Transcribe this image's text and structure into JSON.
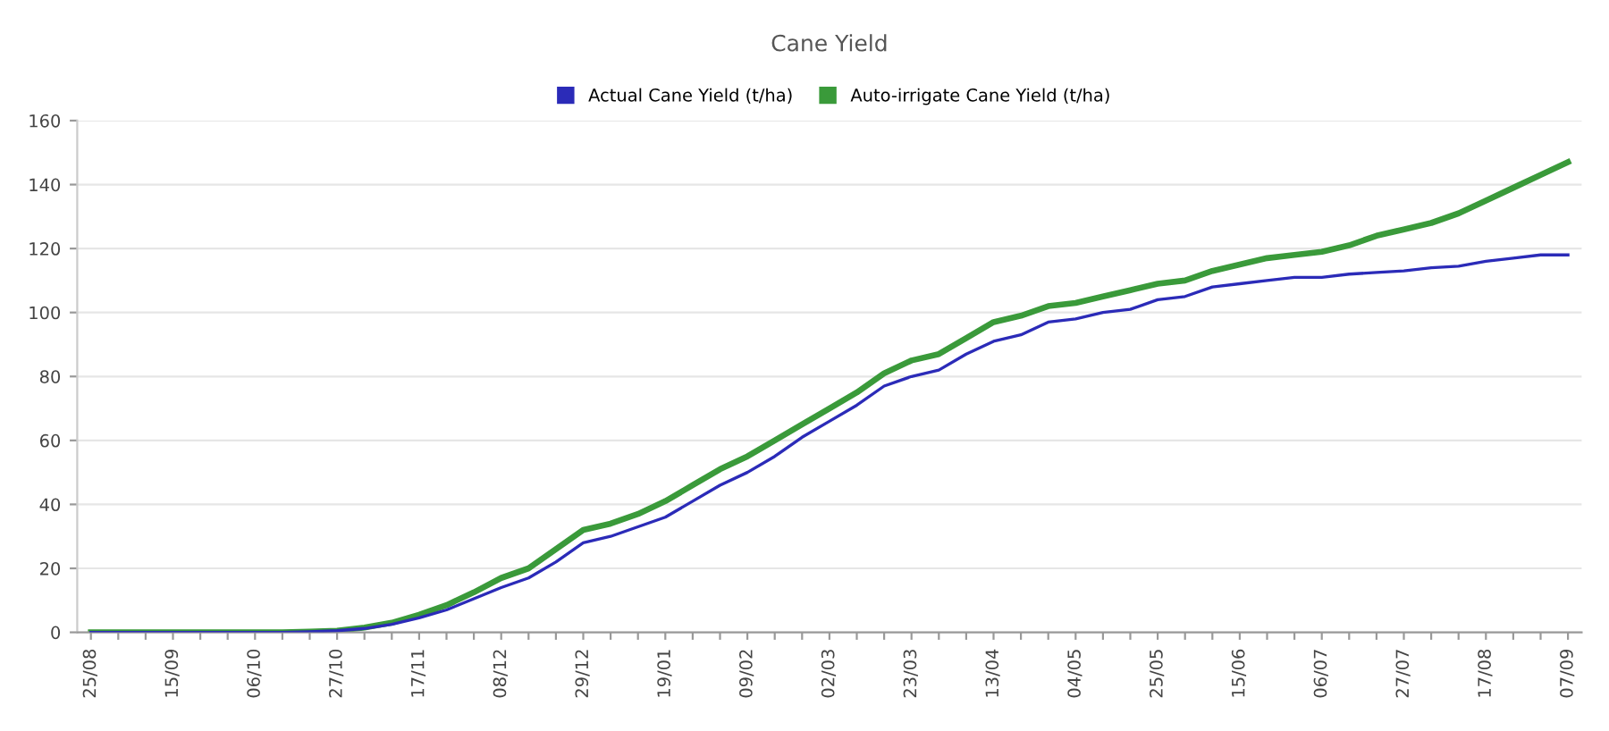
{
  "chart_data": {
    "type": "line",
    "title": "Cane Yield",
    "legend": "top",
    "grid": "y",
    "marker": "none",
    "line_style": "solid",
    "categories": [
      "25/08",
      null,
      null,
      "15/09",
      null,
      null,
      "06/10",
      null,
      null,
      "27/10",
      null,
      null,
      "17/11",
      null,
      null,
      "08/12",
      null,
      null,
      "29/12",
      null,
      null,
      "19/01",
      null,
      null,
      "09/02",
      null,
      null,
      "02/03",
      null,
      null,
      "23/03",
      null,
      null,
      "13/04",
      null,
      null,
      "04/05",
      null,
      null,
      "25/05",
      null,
      null,
      "15/06",
      null,
      null,
      "06/07",
      null,
      null,
      "27/07",
      null,
      null,
      "17/08",
      null,
      null,
      "07/09"
    ],
    "ylim": [
      0,
      160
    ],
    "yticks": [
      0,
      20,
      40,
      60,
      80,
      100,
      120,
      140,
      160
    ],
    "series": [
      {
        "name": "Actual Cane Yield (t/ha)",
        "color": "#2b2bb8",
        "values": [
          0,
          0,
          0,
          0,
          0,
          0,
          0,
          0,
          0.2,
          0.5,
          1.2,
          2.5,
          4.5,
          7,
          10.5,
          14,
          17,
          22,
          28,
          30,
          33,
          36,
          41,
          46,
          50,
          55,
          61,
          66,
          71,
          77,
          80,
          82,
          87,
          91,
          93,
          97,
          98,
          100,
          101,
          104,
          105,
          108,
          109,
          110,
          111,
          111,
          112,
          112.5,
          113,
          114,
          114.5,
          116,
          117,
          118,
          118
        ]
      },
      {
        "name": "Auto-irrigate Cane Yield (t/ha)",
        "color": "#3a9a3a",
        "values": [
          0,
          0,
          0,
          0,
          0,
          0,
          0,
          0,
          0.2,
          0.5,
          1.5,
          3,
          5.5,
          8.5,
          12.5,
          17,
          20,
          26,
          32,
          34,
          37,
          41,
          46,
          51,
          55,
          60,
          65,
          70,
          75,
          81,
          85,
          87,
          92,
          97,
          99,
          102,
          103,
          105,
          107,
          109,
          110,
          113,
          115,
          117,
          118,
          119,
          121,
          124,
          126,
          128,
          131,
          135,
          139,
          143,
          147
        ]
      }
    ]
  }
}
